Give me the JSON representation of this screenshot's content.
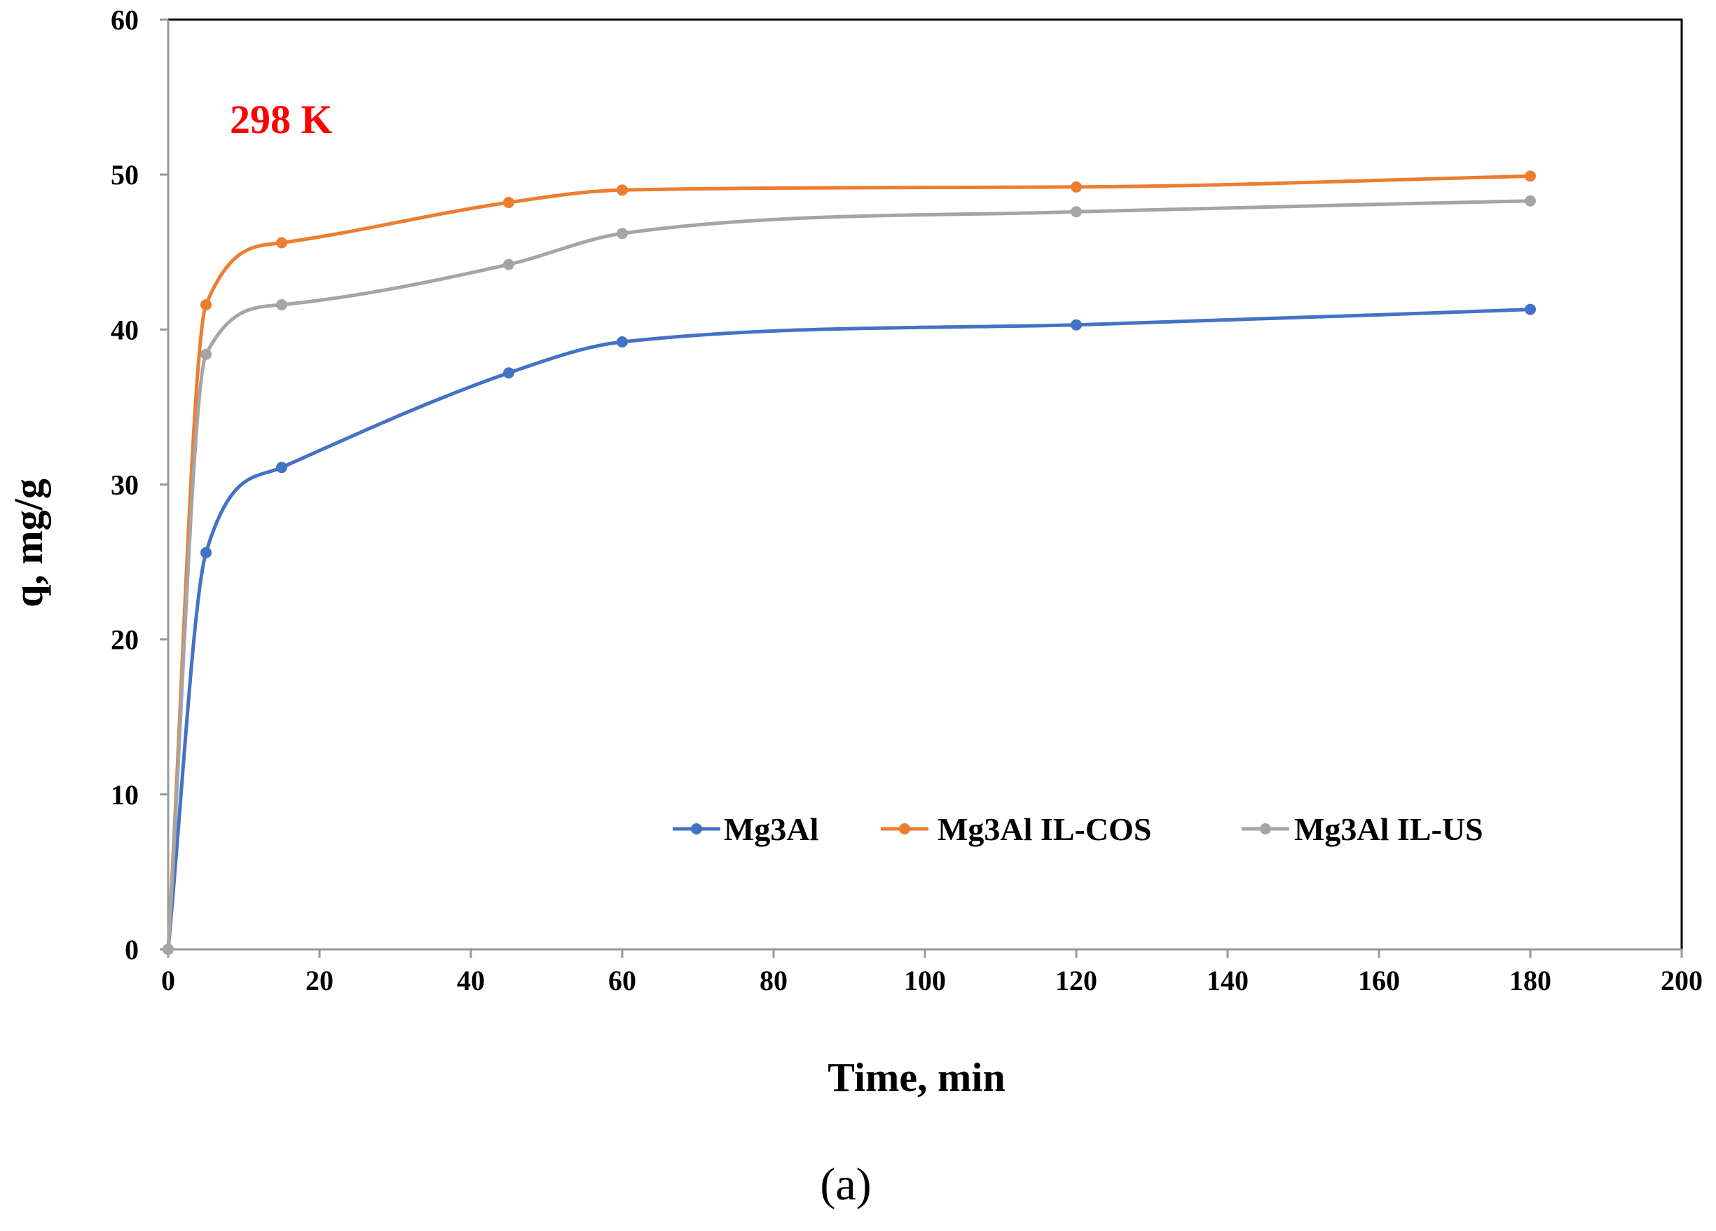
{
  "chart_data": {
    "type": "line",
    "title": "",
    "xlabel": "Time, min",
    "ylabel": "q, mg/g",
    "xlim": [
      0,
      200
    ],
    "ylim": [
      0,
      60
    ],
    "xticks": [
      "0",
      "20",
      "40",
      "60",
      "80",
      "100",
      "120",
      "140",
      "160",
      "180",
      "200"
    ],
    "yticks": [
      "0",
      "10",
      "20",
      "30",
      "40",
      "50",
      "60"
    ],
    "grid": false,
    "legend_position": "bottom-right",
    "annotation": {
      "text": "298 K",
      "color": "#ff0000"
    },
    "caption": "(a)",
    "x": [
      0,
      5,
      15,
      45,
      60,
      120,
      180
    ],
    "series": [
      {
        "name": "Mg3Al",
        "color": "#4472c4",
        "values": [
          0,
          25.6,
          31.1,
          37.2,
          39.2,
          40.3,
          41.3
        ]
      },
      {
        "name": "Mg3Al IL-COS",
        "color": "#ed7d31",
        "values": [
          0,
          41.6,
          45.6,
          48.2,
          49.0,
          49.2,
          49.9
        ]
      },
      {
        "name": "Mg3Al IL-US",
        "color": "#a5a5a5",
        "values": [
          0,
          38.4,
          41.6,
          44.2,
          46.2,
          47.6,
          48.3
        ]
      }
    ]
  }
}
